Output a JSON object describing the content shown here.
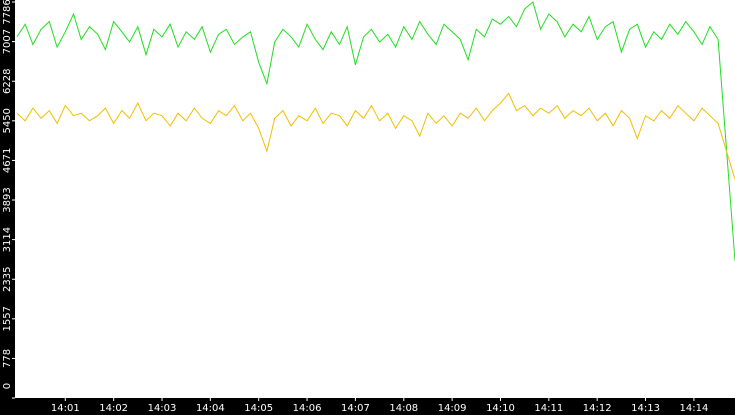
{
  "chart_data": {
    "type": "line",
    "x": [
      0,
      0.17,
      0.33,
      0.5,
      0.67,
      0.83,
      1,
      1.17,
      1.33,
      1.5,
      1.67,
      1.83,
      2,
      2.17,
      2.33,
      2.5,
      2.67,
      2.83,
      3,
      3.17,
      3.33,
      3.5,
      3.67,
      3.83,
      4,
      4.17,
      4.33,
      4.5,
      4.67,
      4.83,
      5,
      5.17,
      5.33,
      5.5,
      5.67,
      5.83,
      6,
      6.17,
      6.33,
      6.5,
      6.67,
      6.83,
      7,
      7.17,
      7.33,
      7.5,
      7.67,
      7.83,
      8,
      8.17,
      8.33,
      8.5,
      8.67,
      8.83,
      9,
      9.17,
      9.33,
      9.5,
      9.67,
      9.83,
      10,
      10.17,
      10.33,
      10.5,
      10.67,
      10.83,
      11,
      11.17,
      11.33,
      11.5,
      11.67,
      11.83,
      12,
      12.17,
      12.33,
      12.5,
      12.67,
      12.83,
      13,
      13.17,
      13.33,
      13.5,
      13.67,
      13.83,
      14,
      14.17,
      14.33,
      14.5,
      14.85
    ],
    "series": [
      {
        "color": "#22dd22",
        "values": [
          7100,
          7350,
          6950,
          7250,
          7400,
          6900,
          7200,
          7550,
          7050,
          7300,
          7150,
          6850,
          7400,
          7200,
          7000,
          7300,
          6750,
          7250,
          7100,
          7350,
          6900,
          7200,
          7050,
          7300,
          6800,
          7150,
          7250,
          6950,
          7100,
          7200,
          6600,
          6180,
          7000,
          7250,
          7100,
          6900,
          7350,
          7050,
          6850,
          7200,
          6950,
          7300,
          6550,
          7100,
          7250,
          7000,
          7150,
          6900,
          7300,
          7050,
          7400,
          7150,
          6950,
          7350,
          7200,
          7050,
          6650,
          7250,
          7100,
          7450,
          7350,
          7500,
          7300,
          7650,
          7786,
          7250,
          7550,
          7400,
          7100,
          7350,
          7200,
          7500,
          7050,
          7300,
          7400,
          6800,
          7250,
          7350,
          6900,
          7200,
          7050,
          7350,
          7150,
          7400,
          7200,
          6950,
          7300,
          7050,
          2700
        ]
      },
      {
        "color": "#f0c000",
        "values": [
          5600,
          5450,
          5700,
          5500,
          5650,
          5400,
          5750,
          5550,
          5600,
          5450,
          5550,
          5700,
          5400,
          5650,
          5500,
          5800,
          5450,
          5600,
          5550,
          5350,
          5600,
          5450,
          5700,
          5500,
          5400,
          5650,
          5550,
          5750,
          5450,
          5600,
          5300,
          4850,
          5500,
          5650,
          5350,
          5550,
          5450,
          5700,
          5400,
          5600,
          5550,
          5350,
          5650,
          5500,
          5750,
          5450,
          5600,
          5300,
          5550,
          5450,
          5150,
          5600,
          5400,
          5550,
          5350,
          5600,
          5500,
          5700,
          5450,
          5650,
          5800,
          5990,
          5650,
          5750,
          5550,
          5700,
          5600,
          5750,
          5500,
          5650,
          5550,
          5700,
          5450,
          5600,
          5350,
          5650,
          5500,
          5100,
          5550,
          5450,
          5650,
          5500,
          5750,
          5600,
          5450,
          5700,
          5550,
          5400,
          4300
        ]
      }
    ],
    "xlim": [
      -0.04,
      14.85
    ],
    "xticks": [
      {
        "value": 1,
        "label": "14:01"
      },
      {
        "value": 2,
        "label": "14:02"
      },
      {
        "value": 3,
        "label": "14:03"
      },
      {
        "value": 4,
        "label": "14:04"
      },
      {
        "value": 5,
        "label": "14:05"
      },
      {
        "value": 6,
        "label": "14:06"
      },
      {
        "value": 7,
        "label": "14:07"
      },
      {
        "value": 8,
        "label": "14:08"
      },
      {
        "value": 9,
        "label": "14:09"
      },
      {
        "value": 10,
        "label": "14:10"
      },
      {
        "value": 11,
        "label": "14:11"
      },
      {
        "value": 12,
        "label": "14:12"
      },
      {
        "value": 13,
        "label": "14:13"
      },
      {
        "value": 14,
        "label": "14:14"
      }
    ],
    "ylim": [
      0,
      7786
    ],
    "yticks": [
      0,
      778,
      1557,
      2335,
      3114,
      3893,
      4671,
      5450,
      6228,
      7007,
      7786
    ]
  }
}
